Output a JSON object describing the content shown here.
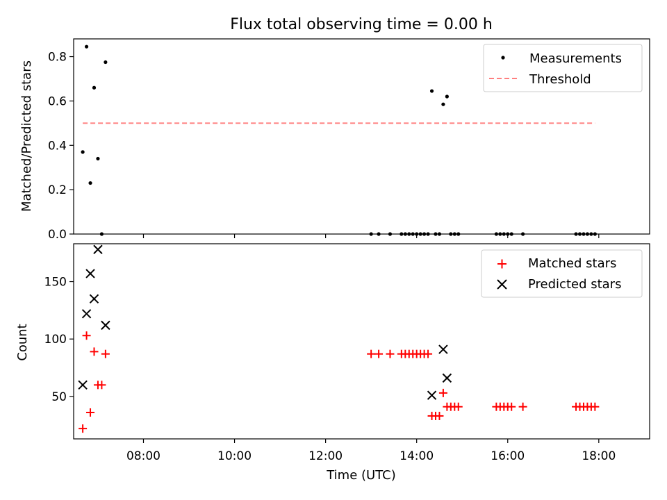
{
  "chart_data": [
    {
      "type": "scatter",
      "title": "Flux total observing time = 0.00 h",
      "ylabel": "Matched/Predicted stars",
      "xlabel": "",
      "xlim": [
        "06:28",
        "19:07"
      ],
      "ylim": [
        0,
        0.88
      ],
      "ytick_labels": [
        "0.0",
        "0.2",
        "0.4",
        "0.6",
        "0.8"
      ],
      "yticks": [
        0,
        0.2,
        0.4,
        0.6,
        0.8
      ],
      "xticks": [
        "08:00",
        "10:00",
        "12:00",
        "14:00",
        "16:00",
        "18:00"
      ],
      "legend_position": "top-right",
      "series": [
        {
          "name": "Measurements",
          "kind": "dot",
          "color": "#000000",
          "points": [
            [
              "06:40",
              0.37
            ],
            [
              "06:45",
              0.845
            ],
            [
              "06:50",
              0.23
            ],
            [
              "06:55",
              0.66
            ],
            [
              "07:00",
              0.34
            ],
            [
              "07:05",
              0.0
            ],
            [
              "07:10",
              0.775
            ],
            [
              "13:00",
              0.0
            ],
            [
              "13:10",
              0.0
            ],
            [
              "13:25",
              0.0
            ],
            [
              "13:40",
              0.0
            ],
            [
              "13:45",
              0.0
            ],
            [
              "13:50",
              0.0
            ],
            [
              "13:55",
              0.0
            ],
            [
              "14:00",
              0.0
            ],
            [
              "14:05",
              0.0
            ],
            [
              "14:10",
              0.0
            ],
            [
              "14:15",
              0.0
            ],
            [
              "14:20",
              0.645
            ],
            [
              "14:25",
              0.0
            ],
            [
              "14:30",
              0.0
            ],
            [
              "14:35",
              0.585
            ],
            [
              "14:40",
              0.62
            ],
            [
              "14:45",
              0.0
            ],
            [
              "14:50",
              0.0
            ],
            [
              "14:55",
              0.0
            ],
            [
              "15:45",
              0.0
            ],
            [
              "15:50",
              0.0
            ],
            [
              "15:55",
              0.0
            ],
            [
              "16:00",
              0.0
            ],
            [
              "16:05",
              0.0
            ],
            [
              "16:20",
              0.0
            ],
            [
              "17:30",
              0.0
            ],
            [
              "17:35",
              0.0
            ],
            [
              "17:40",
              0.0
            ],
            [
              "17:45",
              0.0
            ],
            [
              "17:50",
              0.0
            ],
            [
              "17:55",
              0.0
            ]
          ]
        },
        {
          "name": "Threshold",
          "kind": "dashed",
          "color": "#ff7f7f",
          "points": [
            [
              "06:40",
              0.5
            ],
            [
              "17:55",
              0.5
            ]
          ]
        }
      ]
    },
    {
      "type": "scatter",
      "title": "",
      "ylabel": "Count",
      "xlabel": "Time (UTC)",
      "xlim": [
        "06:28",
        "19:07"
      ],
      "ylim": [
        13,
        183
      ],
      "ytick_labels": [
        "50",
        "100",
        "150"
      ],
      "yticks": [
        50,
        100,
        150
      ],
      "xticks": [
        "08:00",
        "10:00",
        "12:00",
        "14:00",
        "16:00",
        "18:00"
      ],
      "legend_position": "top-right",
      "series": [
        {
          "name": "Matched stars",
          "kind": "plus",
          "color": "#ff0000",
          "points": [
            [
              "06:40",
              22
            ],
            [
              "06:45",
              103
            ],
            [
              "06:50",
              36
            ],
            [
              "06:55",
              89
            ],
            [
              "07:00",
              60
            ],
            [
              "07:05",
              60
            ],
            [
              "07:10",
              87
            ],
            [
              "13:00",
              87
            ],
            [
              "13:10",
              87
            ],
            [
              "13:25",
              87
            ],
            [
              "13:40",
              87
            ],
            [
              "13:45",
              87
            ],
            [
              "13:50",
              87
            ],
            [
              "13:55",
              87
            ],
            [
              "14:00",
              87
            ],
            [
              "14:05",
              87
            ],
            [
              "14:10",
              87
            ],
            [
              "14:15",
              87
            ],
            [
              "14:20",
              33
            ],
            [
              "14:25",
              33
            ],
            [
              "14:30",
              33
            ],
            [
              "14:35",
              53
            ],
            [
              "14:40",
              41
            ],
            [
              "14:45",
              41
            ],
            [
              "14:50",
              41
            ],
            [
              "14:55",
              41
            ],
            [
              "15:45",
              41
            ],
            [
              "15:50",
              41
            ],
            [
              "15:55",
              41
            ],
            [
              "16:00",
              41
            ],
            [
              "16:05",
              41
            ],
            [
              "16:20",
              41
            ],
            [
              "17:30",
              41
            ],
            [
              "17:35",
              41
            ],
            [
              "17:40",
              41
            ],
            [
              "17:45",
              41
            ],
            [
              "17:50",
              41
            ],
            [
              "17:55",
              41
            ]
          ]
        },
        {
          "name": "Predicted stars",
          "kind": "x",
          "color": "#000000",
          "points": [
            [
              "06:40",
              60
            ],
            [
              "06:45",
              122
            ],
            [
              "06:50",
              157
            ],
            [
              "06:55",
              135
            ],
            [
              "07:00",
              178
            ],
            [
              "07:10",
              112
            ],
            [
              "14:20",
              51
            ],
            [
              "14:35",
              91
            ],
            [
              "14:40",
              66
            ]
          ]
        }
      ]
    }
  ]
}
